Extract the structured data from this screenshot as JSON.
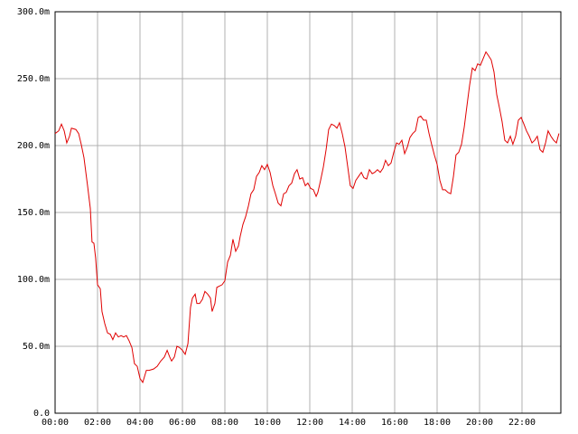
{
  "chart_data": {
    "type": "line",
    "color": "#e00000",
    "grid": true,
    "xlim": [
      0,
      23.83
    ],
    "ylim": [
      0,
      300
    ],
    "xticks": [
      {
        "value": 0,
        "label": "00:00"
      },
      {
        "value": 2,
        "label": "02:00"
      },
      {
        "value": 4,
        "label": "04:00"
      },
      {
        "value": 6,
        "label": "06:00"
      },
      {
        "value": 8,
        "label": "08:00"
      },
      {
        "value": 10,
        "label": "10:00"
      },
      {
        "value": 12,
        "label": "12:00"
      },
      {
        "value": 14,
        "label": "14:00"
      },
      {
        "value": 16,
        "label": "16:00"
      },
      {
        "value": 18,
        "label": "18:00"
      },
      {
        "value": 20,
        "label": "20:00"
      },
      {
        "value": 22,
        "label": "22:00"
      }
    ],
    "yticks": [
      {
        "value": 0,
        "label": "0.0"
      },
      {
        "value": 50,
        "label": "50.0m"
      },
      {
        "value": 100,
        "label": "100.0m"
      },
      {
        "value": 150,
        "label": "150.0m"
      },
      {
        "value": 200,
        "label": "200.0m"
      },
      {
        "value": 250,
        "label": "250.0m"
      },
      {
        "value": 300,
        "label": "300.0m"
      }
    ],
    "x": [
      0,
      0.17,
      0.3,
      0.43,
      0.55,
      0.68,
      0.77,
      0.98,
      1.11,
      1.23,
      1.36,
      1.53,
      1.66,
      1.74,
      1.83,
      1.91,
      2.0,
      2.13,
      2.21,
      2.34,
      2.47,
      2.6,
      2.72,
      2.85,
      2.98,
      3.11,
      3.23,
      3.36,
      3.49,
      3.62,
      3.74,
      3.87,
      4.0,
      4.13,
      4.3,
      4.43,
      4.64,
      4.81,
      4.98,
      5.15,
      5.28,
      5.4,
      5.49,
      5.62,
      5.74,
      5.87,
      6.0,
      6.13,
      6.26,
      6.38,
      6.47,
      6.6,
      6.68,
      6.81,
      6.94,
      7.06,
      7.19,
      7.32,
      7.4,
      7.53,
      7.62,
      7.74,
      7.87,
      8.0,
      8.13,
      8.26,
      8.38,
      8.51,
      8.64,
      8.72,
      8.85,
      8.98,
      9.11,
      9.23,
      9.36,
      9.49,
      9.62,
      9.74,
      9.87,
      10.0,
      10.13,
      10.26,
      10.38,
      10.51,
      10.64,
      10.77,
      10.89,
      11.02,
      11.15,
      11.28,
      11.4,
      11.53,
      11.66,
      11.79,
      11.91,
      12.04,
      12.17,
      12.3,
      12.38,
      12.51,
      12.64,
      12.77,
      12.89,
      13.02,
      13.15,
      13.28,
      13.4,
      13.53,
      13.66,
      13.79,
      13.91,
      14.04,
      14.17,
      14.3,
      14.43,
      14.55,
      14.68,
      14.81,
      14.94,
      15.06,
      15.19,
      15.32,
      15.45,
      15.57,
      15.7,
      15.83,
      15.96,
      16.09,
      16.21,
      16.34,
      16.47,
      16.6,
      16.72,
      16.85,
      16.98,
      17.11,
      17.23,
      17.36,
      17.49,
      17.62,
      17.74,
      17.87,
      18.0,
      18.13,
      18.26,
      18.38,
      18.51,
      18.64,
      18.77,
      18.89,
      19.02,
      19.15,
      19.28,
      19.4,
      19.53,
      19.66,
      19.79,
      19.91,
      20.04,
      20.17,
      20.3,
      20.43,
      20.55,
      20.68,
      20.81,
      20.94,
      21.06,
      21.19,
      21.32,
      21.45,
      21.57,
      21.7,
      21.83,
      21.96,
      22.09,
      22.21,
      22.34,
      22.47,
      22.6,
      22.72,
      22.85,
      22.98,
      23.11,
      23.23,
      23.36,
      23.49,
      23.62,
      23.74
    ],
    "values": [
      209,
      211,
      216,
      211,
      202,
      207,
      213,
      212,
      209,
      201,
      191,
      170,
      153,
      128,
      127,
      116,
      96,
      93,
      76,
      67,
      60,
      59,
      55,
      60,
      57,
      58,
      57,
      58,
      54,
      49,
      37,
      35,
      26,
      23,
      32,
      32,
      33,
      35,
      39,
      42,
      47,
      42,
      39,
      42,
      50,
      49,
      47,
      44,
      52,
      79,
      86,
      89,
      82,
      82,
      85,
      91,
      89,
      86,
      76,
      82,
      94,
      95,
      96,
      99,
      113,
      118,
      130,
      121,
      125,
      132,
      141,
      147,
      155,
      164,
      167,
      177,
      180,
      185,
      182,
      186,
      180,
      170,
      164,
      157,
      155,
      164,
      165,
      170,
      172,
      179,
      182,
      175,
      176,
      170,
      172,
      168,
      167,
      162,
      165,
      174,
      184,
      197,
      212,
      216,
      215,
      213,
      217,
      209,
      199,
      184,
      170,
      168,
      174,
      177,
      180,
      176,
      175,
      182,
      179,
      180,
      182,
      180,
      183,
      189,
      185,
      187,
      195,
      202,
      201,
      204,
      194,
      199,
      206,
      209,
      211,
      221,
      222,
      219,
      219,
      209,
      201,
      193,
      186,
      174,
      167,
      167,
      165,
      164,
      177,
      193,
      195,
      201,
      214,
      229,
      245,
      258,
      256,
      261,
      260,
      265,
      270,
      267,
      264,
      255,
      238,
      228,
      218,
      204,
      202,
      207,
      201,
      207,
      219,
      221,
      216,
      211,
      207,
      202,
      204,
      207,
      197,
      195,
      202,
      211,
      207,
      204,
      202,
      209
    ]
  }
}
